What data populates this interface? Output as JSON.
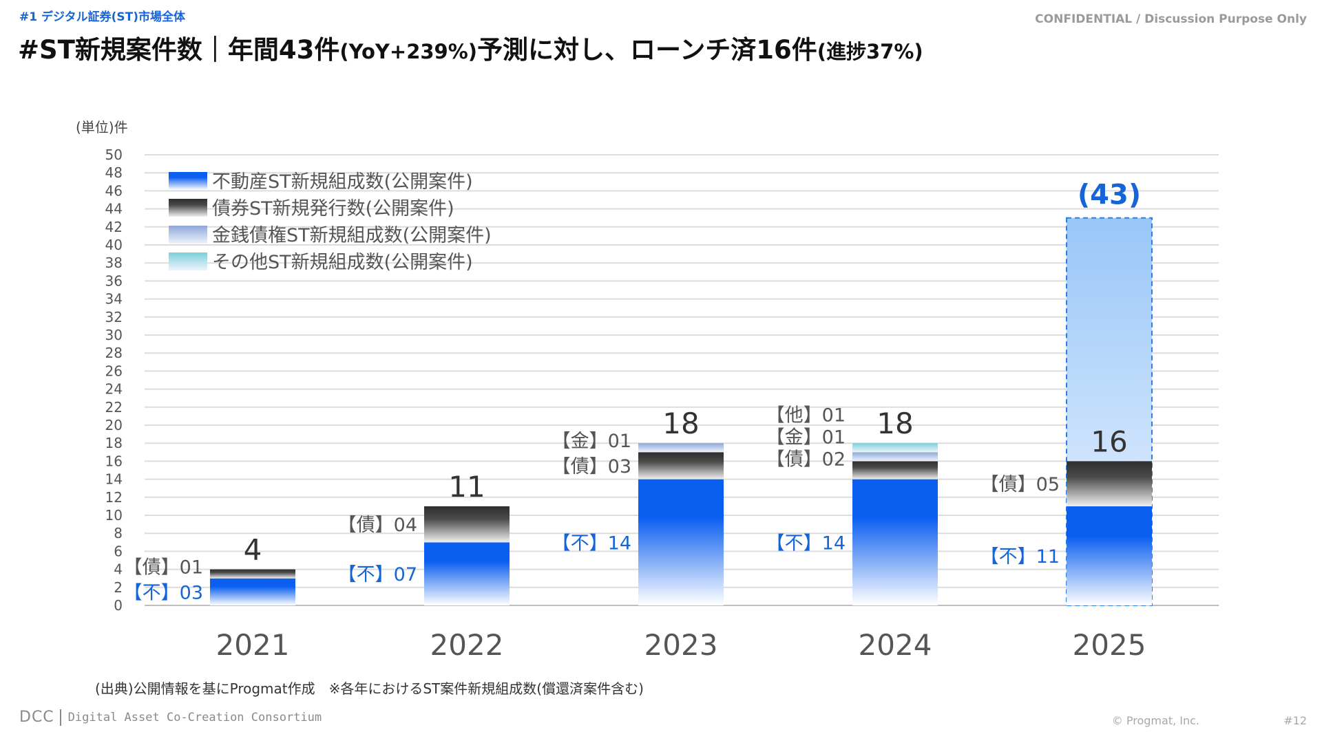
{
  "header": {
    "section_tag": "#1 デジタル証券(ST)市場全体",
    "confidential": "CONFIDENTIAL / Discussion Purpose Only",
    "title_main": "#ST新規案件数｜年間43件",
    "title_paren1": "(YoY+239%)",
    "title_mid": "予測に対し、ローンチ済16件",
    "title_paren2": "(進捗37%)"
  },
  "chart_data": {
    "type": "bar",
    "stacked": true,
    "unit_label": "(単位)件",
    "categories": [
      "2021",
      "2022",
      "2023",
      "2024",
      "2025"
    ],
    "ylim": [
      0,
      50
    ],
    "yticks": [
      0,
      2,
      4,
      6,
      8,
      10,
      12,
      14,
      16,
      18,
      20,
      22,
      24,
      26,
      28,
      30,
      32,
      34,
      36,
      38,
      40,
      42,
      44,
      46,
      48,
      50
    ],
    "grid": true,
    "legend_position": "top-left",
    "series": [
      {
        "name": "不動産ST新規組成数(公開案件)",
        "key": "fudosan",
        "prefix": "【不】",
        "color": "#0a5ef0",
        "values": [
          3,
          7,
          14,
          14,
          11
        ],
        "labels": [
          "03",
          "07",
          "14",
          "14",
          "11"
        ]
      },
      {
        "name": "債券ST新規発行数(公開案件)",
        "key": "saiken",
        "prefix": "【債】",
        "color": "#2e2e2e",
        "values": [
          1,
          4,
          3,
          2,
          5
        ],
        "labels": [
          "01",
          "04",
          "03",
          "02",
          "05"
        ]
      },
      {
        "name": "金銭債権ST新規組成数(公開案件)",
        "key": "kinsen",
        "prefix": "【金】",
        "color": "#8fa8d8",
        "values": [
          0,
          0,
          1,
          1,
          0
        ],
        "labels": [
          "",
          "",
          "01",
          "01",
          ""
        ]
      },
      {
        "name": "その他ST新規組成数(公開案件)",
        "key": "sonota",
        "prefix": "【他】",
        "color": "#7ccfdc",
        "values": [
          0,
          0,
          0,
          1,
          0
        ],
        "labels": [
          "",
          "",
          "",
          "01",
          ""
        ]
      }
    ],
    "totals": [
      "4",
      "11",
      "18",
      "18",
      "16"
    ],
    "forecast": {
      "category": "2025",
      "value": 43,
      "label": "(43)"
    }
  },
  "footer": {
    "source": "(出典)公開情報を基にProgmat作成　※各年におけるST案件新規組成数(償還済案件含む)",
    "logo_mark": "DCC",
    "logo_text": "Digital Asset Co-Creation Consortium",
    "copyright": "© Progmat, Inc.",
    "page": "#12"
  }
}
